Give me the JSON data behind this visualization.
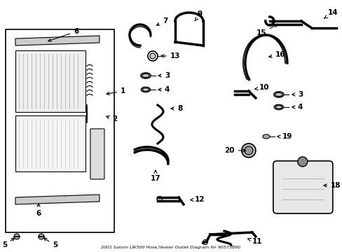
{
  "title": "2001 Saturn LW300 Hose,Heater Outlet Diagram for 90573890",
  "bg_color": "#ffffff",
  "border_color": "#000000",
  "line_color": "#000000",
  "text_color": "#000000",
  "fig_width": 4.89,
  "fig_height": 3.6,
  "dpi": 100
}
